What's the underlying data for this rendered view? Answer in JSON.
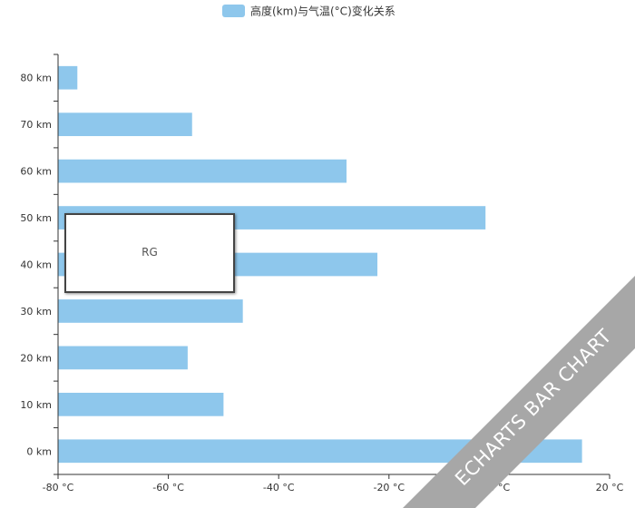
{
  "chart_data": {
    "type": "bar",
    "orientation": "horizontal",
    "categories": [
      "0 km",
      "10 km",
      "20 km",
      "30 km",
      "40 km",
      "50 km",
      "60 km",
      "70 km",
      "80 km"
    ],
    "series": [
      {
        "name": "高度(km)与气温(°C)变化关系",
        "color": "#8ec7ec",
        "values": [
          15,
          -50,
          -56.5,
          -46.5,
          -22.1,
          -2.5,
          -27.7,
          -55.7,
          -76.5
        ]
      }
    ],
    "x_ticks": [
      "-80 °C",
      "-60 °C",
      "-40 °C",
      "-20 °C",
      "0 °C",
      "20 °C"
    ],
    "xlim": [
      -80,
      20
    ],
    "grid": false,
    "legend_position": "top-center"
  },
  "tooltip": {
    "text": "RG"
  },
  "watermark": {
    "text": "ECHARTS BAR CHART",
    "color": "#a7a7a7"
  }
}
